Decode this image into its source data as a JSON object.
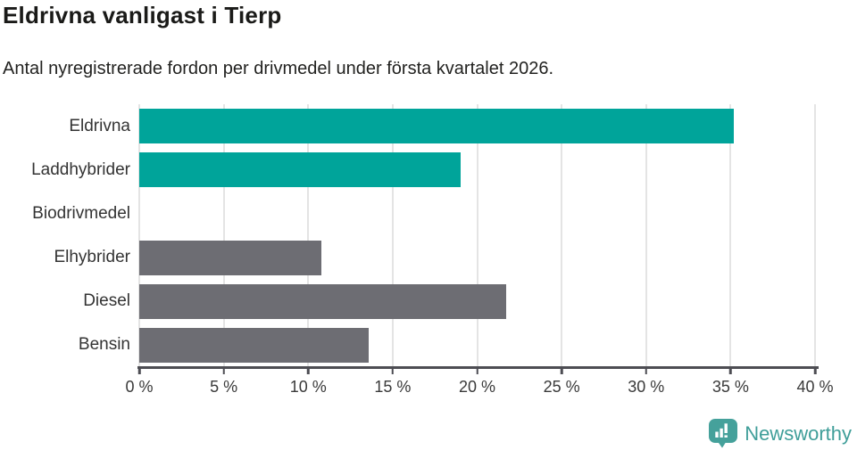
{
  "chart": {
    "title": "Eldrivna vanligast i Tierp",
    "subtitle": "Antal nyregistrerade fordon per drivmedel under första kvartalet 2026."
  },
  "chart_data": {
    "type": "bar",
    "orientation": "horizontal",
    "title": "Eldrivna vanligast i Tierp",
    "subtitle": "Antal nyregistrerade fordon per drivmedel under första kvartalet 2026.",
    "categories": [
      "Eldrivna",
      "Laddhybrider",
      "Biodrivmedel",
      "Elhybrider",
      "Diesel",
      "Bensin"
    ],
    "values": [
      35.2,
      19.0,
      0,
      10.8,
      21.7,
      13.6
    ],
    "unit": "%",
    "xlim": [
      0,
      40
    ],
    "xticks": [
      0,
      5,
      10,
      15,
      20,
      25,
      30,
      35,
      40
    ],
    "xtick_labels": [
      "0 %",
      "5 %",
      "10 %",
      "15 %",
      "20 %",
      "25 %",
      "30 %",
      "35 %",
      "40 %"
    ],
    "bar_colors": [
      "#00a49a",
      "#00a49a",
      "#6d6d73",
      "#6d6d73",
      "#6d6d73",
      "#6d6d73"
    ],
    "highlight_color": "#00a49a",
    "default_color": "#6d6d73",
    "grid": true,
    "gridline_color": "#e4e4e4",
    "axis_color": "#4d4d53",
    "legend": "none"
  },
  "footer": {
    "brand": "Newsworthy",
    "brand_color": "#3f9e99",
    "logo_icon": "newsworthy-speech-bubble-bar-chart-icon"
  }
}
